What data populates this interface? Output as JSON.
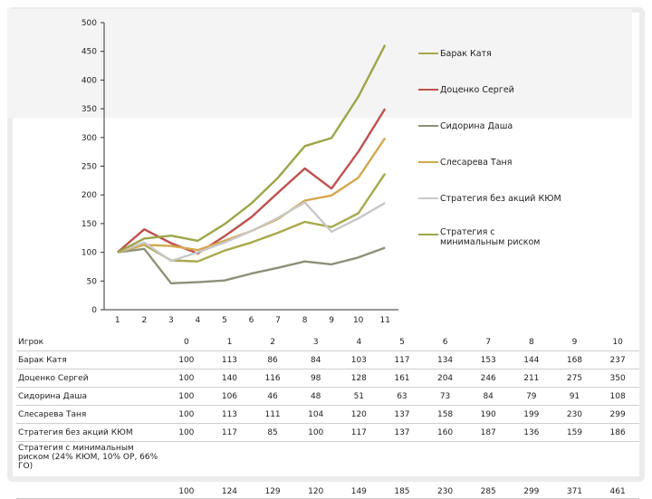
{
  "chart_data": {
    "type": "line",
    "x": [
      "1",
      "2",
      "3",
      "4",
      "5",
      "6",
      "7",
      "8",
      "9",
      "10",
      "11"
    ],
    "ylim": [
      0,
      500
    ],
    "yticks": [
      "0",
      "50",
      "100",
      "150",
      "200",
      "250",
      "300",
      "350",
      "400",
      "450",
      "500"
    ],
    "grid": false,
    "legend_position": "right",
    "series": [
      {
        "name": "Барак Катя",
        "color": "#a8a84a",
        "values": [
          100,
          113,
          86,
          84,
          103,
          117,
          134,
          153,
          144,
          168,
          237
        ]
      },
      {
        "name": "Доценко Сергей",
        "color": "#c0504d",
        "values": [
          100,
          140,
          116,
          98,
          128,
          161,
          204,
          246,
          211,
          275,
          350
        ]
      },
      {
        "name": "Сидорина Даша",
        "color": "#8a9177",
        "values": [
          100,
          106,
          46,
          48,
          51,
          63,
          73,
          84,
          79,
          91,
          108
        ]
      },
      {
        "name": "Слесарева Таня",
        "color": "#d4a84c",
        "values": [
          100,
          113,
          111,
          104,
          120,
          137,
          158,
          190,
          199,
          230,
          299
        ]
      },
      {
        "name": "Стратегия без акций КЮМ",
        "color": "#c8c8c8",
        "values": [
          100,
          117,
          85,
          100,
          117,
          137,
          160,
          187,
          136,
          159,
          186
        ]
      },
      {
        "name": "Стратегия с минимальным риском",
        "color": "#9ea548",
        "values": [
          100,
          124,
          129,
          120,
          149,
          185,
          230,
          285,
          299,
          371,
          461
        ]
      }
    ]
  },
  "table": {
    "header_label": "Игрок",
    "columns": [
      "0",
      "1",
      "2",
      "3",
      "4",
      "5",
      "6",
      "7",
      "8",
      "9",
      "10"
    ],
    "rows": [
      {
        "label": "Барак Катя",
        "values": [
          "100",
          "113",
          "86",
          "84",
          "103",
          "117",
          "134",
          "153",
          "144",
          "168",
          "237"
        ]
      },
      {
        "label": "Доценко Сергей",
        "values": [
          "100",
          "140",
          "116",
          "98",
          "128",
          "161",
          "204",
          "246",
          "211",
          "275",
          "350"
        ]
      },
      {
        "label": "Сидорина Даша",
        "values": [
          "100",
          "106",
          "46",
          "48",
          "51",
          "63",
          "73",
          "84",
          "79",
          "91",
          "108"
        ]
      },
      {
        "label": "Слесарева Таня",
        "values": [
          "100",
          "113",
          "111",
          "104",
          "120",
          "137",
          "158",
          "190",
          "199",
          "230",
          "299"
        ]
      },
      {
        "label": "Стратегия без акций КЮМ",
        "values": [
          "100",
          "117",
          "85",
          "100",
          "117",
          "137",
          "160",
          "187",
          "136",
          "159",
          "186"
        ]
      },
      {
        "label": "Стратегия с минимальным риском (24% КЮМ, 10% ОР, 66% ГО)",
        "values": [
          "100",
          "124",
          "129",
          "120",
          "149",
          "185",
          "230",
          "285",
          "299",
          "371",
          "461"
        ]
      }
    ]
  }
}
